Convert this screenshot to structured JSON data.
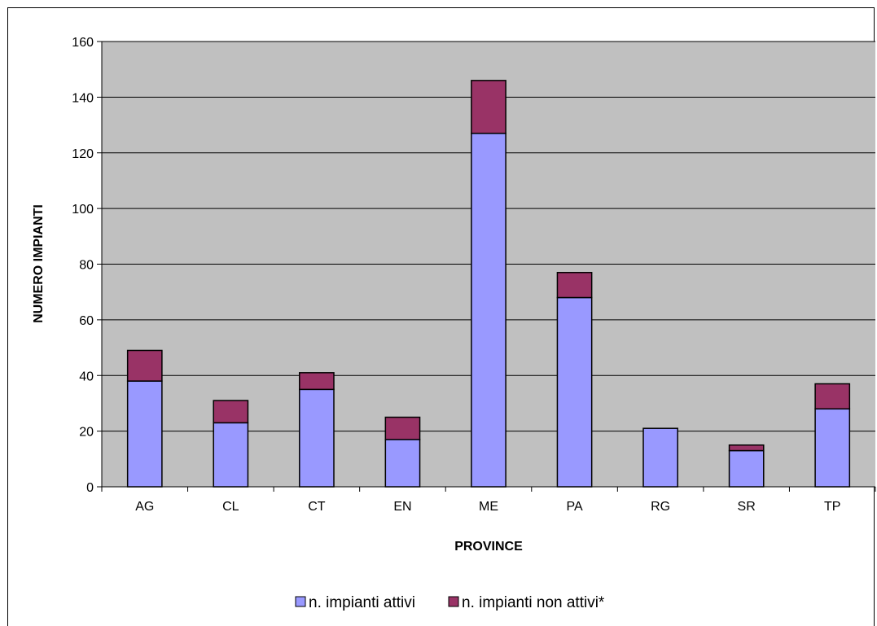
{
  "chart_data": {
    "type": "bar",
    "stacked": true,
    "categories": [
      "AG",
      "CL",
      "CT",
      "EN",
      "ME",
      "PA",
      "RG",
      "SR",
      "TP"
    ],
    "series": [
      {
        "name": "n. impianti attivi",
        "values": [
          38,
          23,
          35,
          17,
          127,
          68,
          21,
          13,
          28
        ],
        "color": "#9999ff"
      },
      {
        "name": "n. impianti non attivi*",
        "values": [
          11,
          8,
          6,
          8,
          19,
          9,
          0,
          2,
          9
        ],
        "color": "#993366"
      }
    ],
    "title": "",
    "xlabel": "PROVINCE",
    "ylabel": "NUMERO IMPIANTI",
    "ylim": [
      0,
      160
    ],
    "yticks": [
      0,
      20,
      40,
      60,
      80,
      100,
      120,
      140,
      160
    ],
    "grid": true,
    "plot_background": "#c0c0c0",
    "legend_position": "bottom"
  }
}
